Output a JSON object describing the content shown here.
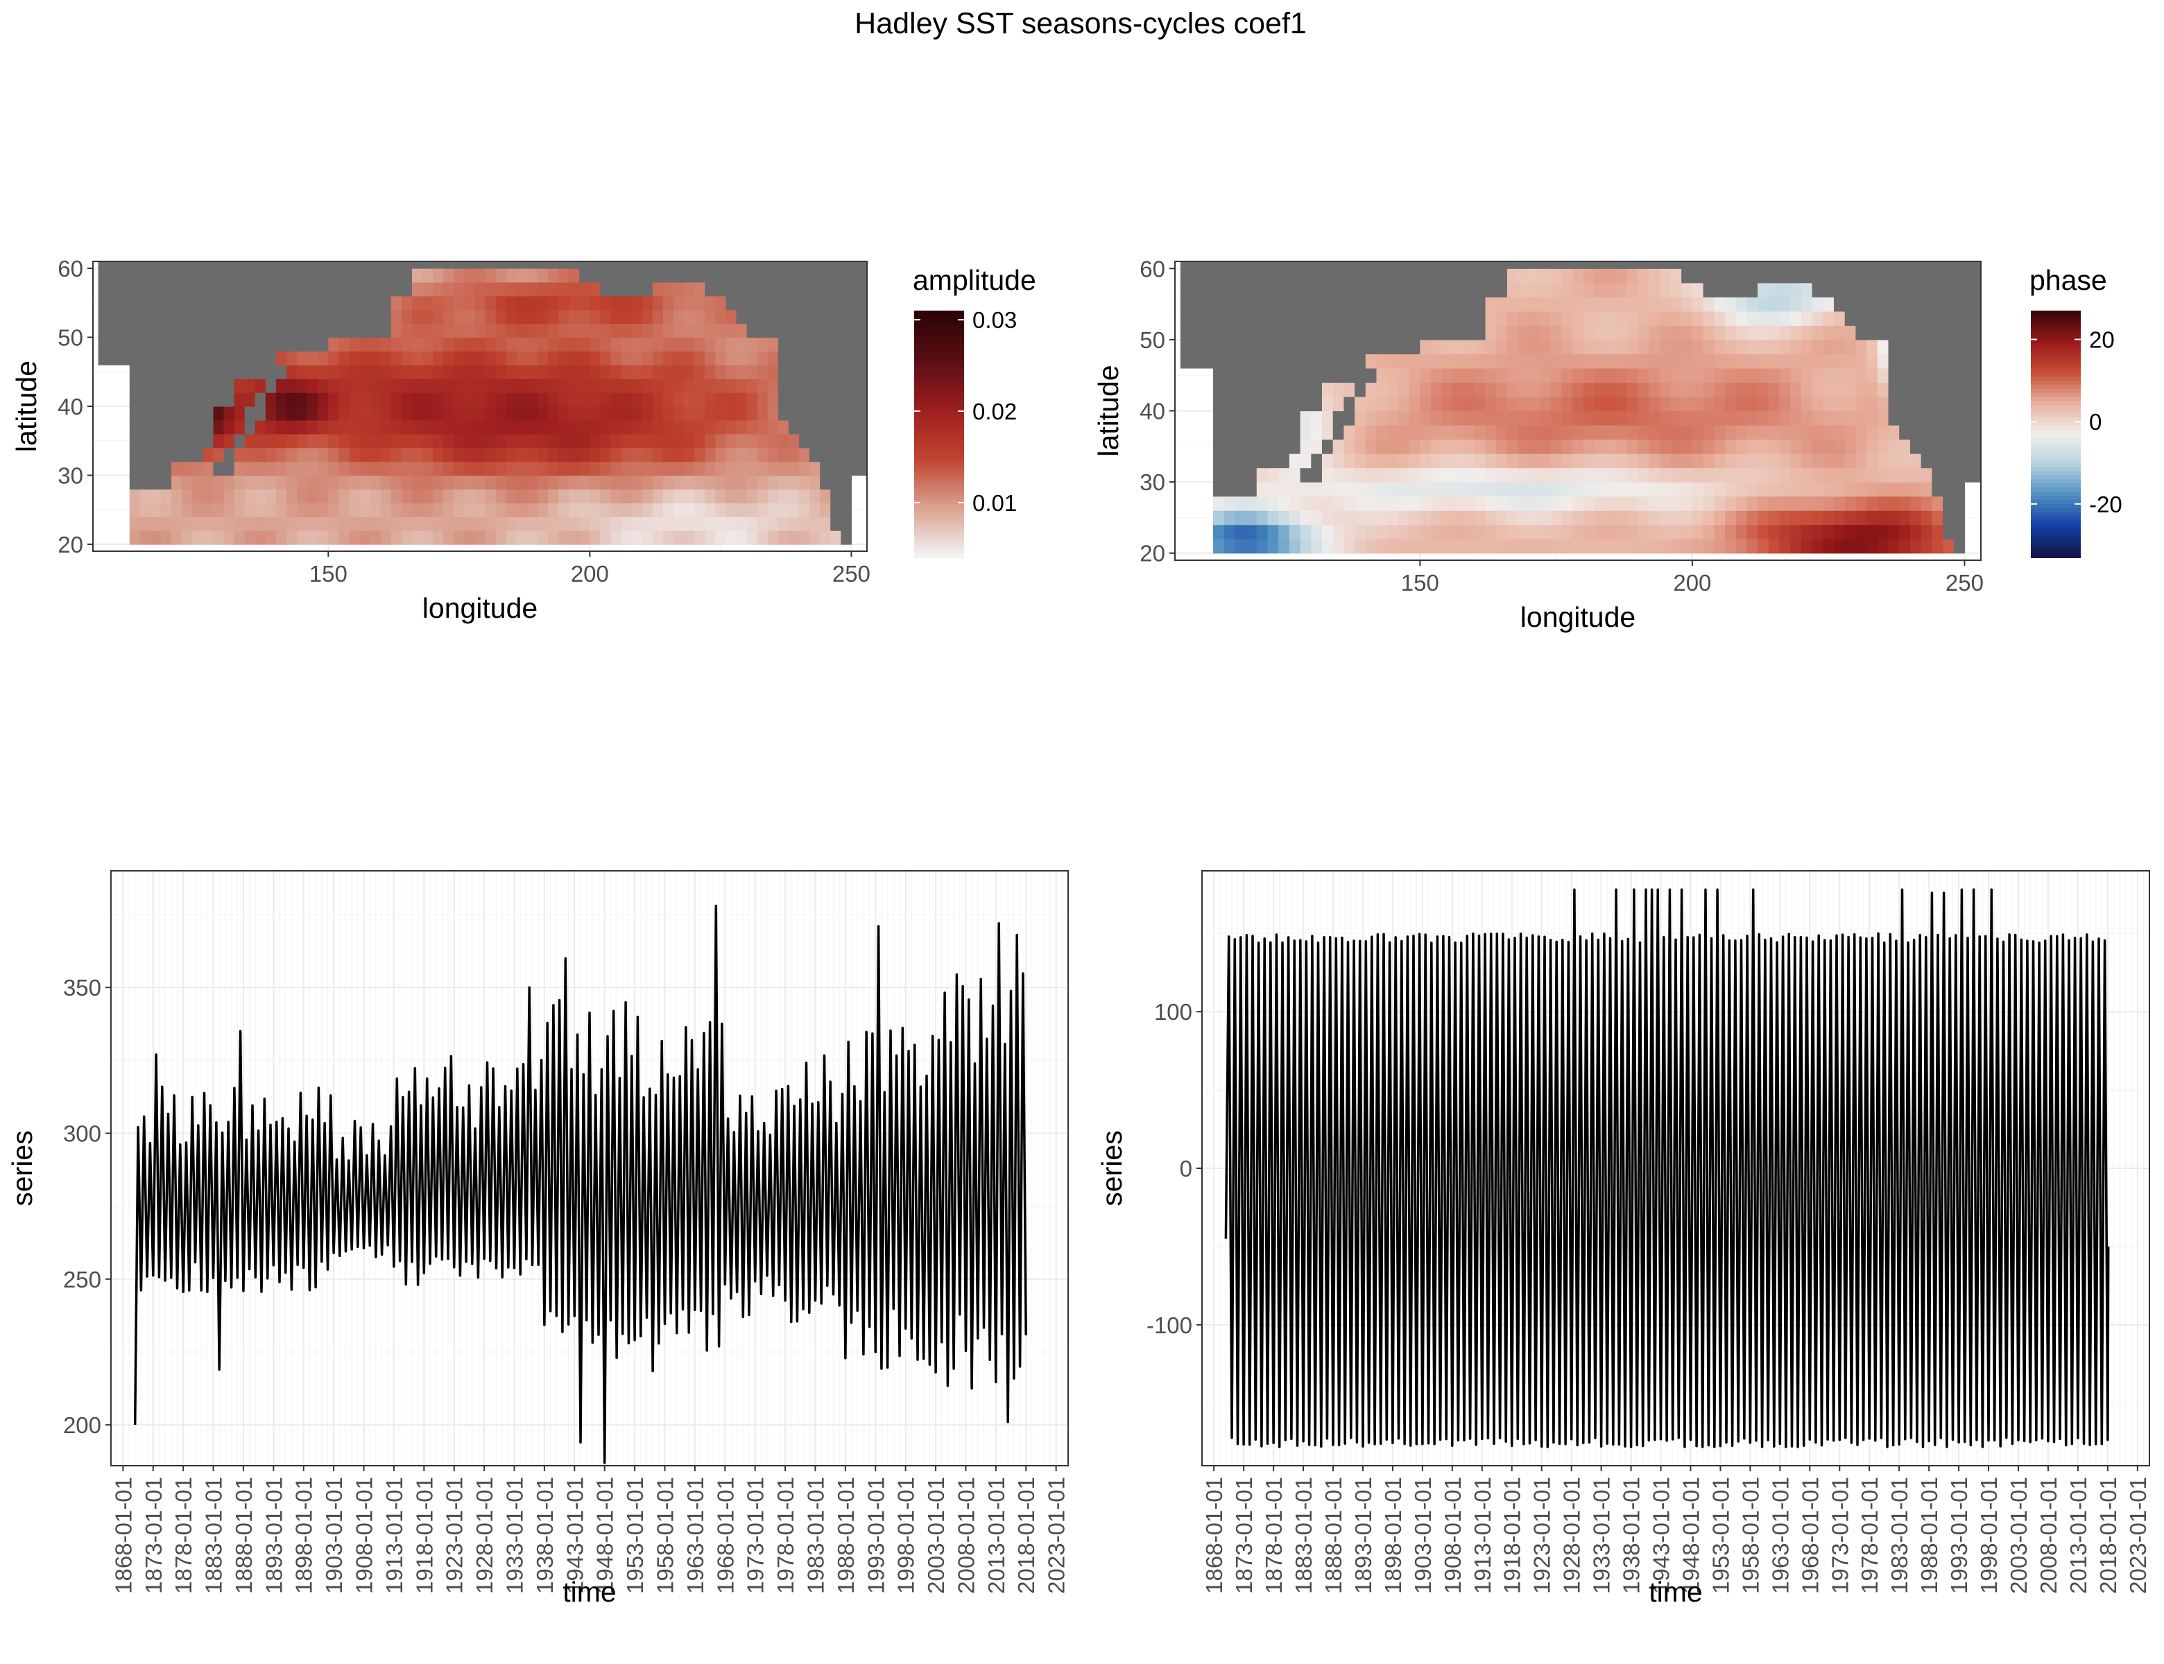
{
  "title": "Hadley SST seasons-cycles coef1",
  "colors": {
    "land": "#6b6b6b",
    "panel_border": "#333333",
    "grid_major": "#ebebeb",
    "grid_minor": "#f5f5f5",
    "line": "#000000",
    "amplitude_scale": [
      "#f2f2f2",
      "#d9a08e",
      "#c0442f",
      "#9e1f1f",
      "#5a0f14",
      "#2b0306"
    ],
    "phase_scale": [
      "#10164a",
      "#1640a8",
      "#4f8fc0",
      "#b8d3e0",
      "#f1eeec",
      "#e8b3a0",
      "#c9503a",
      "#9a1a1a",
      "#3d0508"
    ]
  },
  "chart_data": [
    {
      "type": "heatmap",
      "xlabel": "longitude",
      "ylabel": "latitude",
      "xlim": [
        105,
        253
      ],
      "ylim": [
        19,
        61
      ],
      "x_ticks": [
        150,
        200,
        250
      ],
      "y_ticks": [
        20,
        30,
        40,
        50,
        60
      ],
      "grid": true,
      "legend": {
        "title": "amplitude",
        "position": "right",
        "range": [
          0.004,
          0.031
        ],
        "ticks": [
          0.01,
          0.02,
          0.03
        ],
        "tick_labels": [
          "0.01",
          "0.02",
          "0.03"
        ]
      },
      "field": "amplitude",
      "colorscale": "amplitude_scale"
    },
    {
      "type": "heatmap",
      "xlabel": "longitude",
      "ylabel": "latitude",
      "xlim": [
        105,
        253
      ],
      "ylim": [
        19,
        61
      ],
      "x_ticks": [
        150,
        200,
        250
      ],
      "y_ticks": [
        20,
        30,
        40,
        50,
        60
      ],
      "grid": true,
      "legend": {
        "title": "phase",
        "position": "right",
        "range": [
          -33,
          27
        ],
        "ticks": [
          -20,
          0,
          20
        ],
        "tick_labels": [
          "-20",
          "0",
          "20"
        ]
      },
      "field": "phase",
      "colorscale": "phase_scale"
    },
    {
      "type": "line",
      "xlabel": "time",
      "ylabel": "series",
      "xlim": [
        1866,
        2025
      ],
      "ylim": [
        186,
        390
      ],
      "y_ticks": [
        200,
        250,
        300,
        350
      ],
      "x_tick_labels": [
        "1868-01-01",
        "1873-01-01",
        "1878-01-01",
        "1883-01-01",
        "1888-01-01",
        "1893-01-01",
        "1898-01-01",
        "1903-01-01",
        "1908-01-01",
        "1913-01-01",
        "1918-01-01",
        "1923-01-01",
        "1928-01-01",
        "1933-01-01",
        "1938-01-01",
        "1943-01-01",
        "1948-01-01",
        "1953-01-01",
        "1958-01-01",
        "1963-01-01",
        "1968-01-01",
        "1973-01-01",
        "1978-01-01",
        "1983-01-01",
        "1988-01-01",
        "1993-01-01",
        "1998-01-01",
        "2003-01-01",
        "2008-01-01",
        "2013-01-01",
        "2018-01-01",
        "2023-01-01"
      ],
      "x_tick_years": [
        1868,
        1873,
        1878,
        1883,
        1888,
        1893,
        1898,
        1903,
        1908,
        1913,
        1918,
        1923,
        1928,
        1933,
        1938,
        1943,
        1948,
        1953,
        1958,
        1963,
        1968,
        1973,
        1978,
        1983,
        1988,
        1993,
        1998,
        2003,
        2008,
        2013,
        2018,
        2023
      ],
      "grid": true,
      "series": [
        {
          "x_start": 1870.0,
          "x_end": 2018.0,
          "baseline": 270,
          "segments": [
            {
              "from": 1870,
              "to": 1878,
              "max": 316,
              "min": 240
            },
            {
              "from": 1878,
              "to": 1903,
              "max": 318,
              "min": 245
            },
            {
              "from": 1903,
              "to": 1913,
              "max": 305,
              "min": 255
            },
            {
              "from": 1913,
              "to": 1938,
              "max": 327,
              "min": 248
            },
            {
              "from": 1938,
              "to": 1943,
              "max": 348,
              "min": 228
            },
            {
              "from": 1943,
              "to": 1958,
              "max": 345,
              "min": 212
            },
            {
              "from": 1958,
              "to": 1968,
              "max": 340,
              "min": 222
            },
            {
              "from": 1968,
              "to": 1978,
              "max": 318,
              "min": 236
            },
            {
              "from": 1978,
              "to": 1988,
              "max": 330,
              "min": 232
            },
            {
              "from": 1988,
              "to": 2003,
              "max": 340,
              "min": 218
            },
            {
              "from": 2003,
              "to": 2018,
              "max": 360,
              "min": 212
            }
          ],
          "spikes_max": [
            [
              1873.5,
              327
            ],
            [
              1887.1,
              335
            ],
            [
              1935.1,
              350
            ],
            [
              1941.4,
              360
            ],
            [
              1966.2,
              378
            ],
            [
              1993.7,
              371
            ],
            [
              2013.3,
              372
            ],
            [
              2016.2,
              368
            ]
          ],
          "spikes_min": [
            [
              1870.0,
              200
            ],
            [
              1884.0,
              219
            ],
            [
              1943.6,
              194
            ],
            [
              1948.3,
              187
            ],
            [
              2015.5,
              201
            ],
            [
              2017.5,
              220
            ]
          ]
        }
      ]
    },
    {
      "type": "line",
      "xlabel": "time",
      "ylabel": "series",
      "xlim": [
        1866,
        2025
      ],
      "ylim": [
        -190,
        190
      ],
      "y_ticks": [
        -100,
        0,
        100
      ],
      "x_tick_labels": [
        "1868-01-01",
        "1873-01-01",
        "1878-01-01",
        "1883-01-01",
        "1888-01-01",
        "1893-01-01",
        "1898-01-01",
        "1903-01-01",
        "1908-01-01",
        "1913-01-01",
        "1918-01-01",
        "1923-01-01",
        "1928-01-01",
        "1933-01-01",
        "1938-01-01",
        "1943-01-01",
        "1948-01-01",
        "1953-01-01",
        "1958-01-01",
        "1963-01-01",
        "1968-01-01",
        "1973-01-01",
        "1978-01-01",
        "1983-01-01",
        "1988-01-01",
        "1993-01-01",
        "1998-01-01",
        "2003-01-01",
        "2008-01-01",
        "2013-01-01",
        "2018-01-01",
        "2023-01-01"
      ],
      "x_tick_years": [
        1868,
        1873,
        1878,
        1883,
        1888,
        1893,
        1898,
        1903,
        1908,
        1913,
        1918,
        1923,
        1928,
        1933,
        1938,
        1943,
        1948,
        1953,
        1958,
        1963,
        1968,
        1973,
        1978,
        1983,
        1988,
        1993,
        1998,
        2003,
        2008,
        2013,
        2018,
        2023
      ],
      "grid": true,
      "series": [
        {
          "x_start": 1870.0,
          "x_end": 2018.0,
          "start_value": -45,
          "end_value": -50,
          "max_typical": 150,
          "min_typical": -172,
          "spikes_max": [
            [
              1928.1,
              178
            ],
            [
              1935.2,
              178
            ],
            [
              1936.0,
              178
            ],
            [
              1938.3,
              178
            ],
            [
              1940.1,
              178
            ],
            [
              1941.2,
              178
            ],
            [
              1943.0,
              178
            ],
            [
              1944.1,
              178
            ],
            [
              1946.2,
              178
            ],
            [
              1951.0,
              178
            ],
            [
              1952.1,
              178
            ],
            [
              1953.0,
              178
            ],
            [
              1958.3,
              178
            ],
            [
              1983.1,
              178
            ],
            [
              1988.2,
              176
            ],
            [
              1989.0,
              176
            ],
            [
              1990.1,
              176
            ],
            [
              1991.0,
              176
            ],
            [
              1993.2,
              178
            ],
            [
              1995.1,
              178
            ],
            [
              1996.0,
              178
            ],
            [
              1998.2,
              178
            ]
          ],
          "spikes_min": [
            [
              1938.5,
              -178
            ],
            [
              1946.8,
              -178
            ],
            [
              1950.5,
              -178
            ],
            [
              1951.6,
              -178
            ],
            [
              1960.5,
              -178
            ],
            [
              1963.7,
              -178
            ],
            [
              1966.5,
              -178
            ],
            [
              1980.6,
              -178
            ],
            [
              1990.6,
              -178
            ],
            [
              1996.7,
              -178
            ]
          ]
        }
      ]
    }
  ]
}
